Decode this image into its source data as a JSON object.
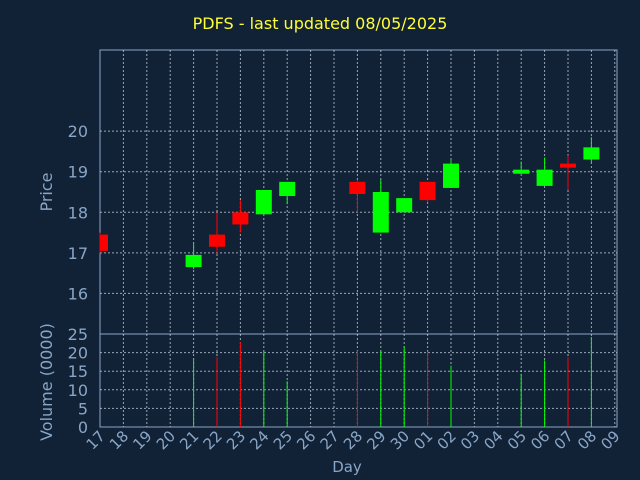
{
  "chart_data": {
    "type": "candlestick",
    "title": "PDFS - last updated 08/05/2025",
    "xlabel": "Day",
    "price_ylabel": "Price",
    "volume_ylabel": "Volume (0000)",
    "grid": true,
    "x_ticks": [
      "17",
      "18",
      "19",
      "20",
      "21",
      "22",
      "23",
      "24",
      "25",
      "26",
      "27",
      "28",
      "29",
      "30",
      "01",
      "02",
      "03",
      "04",
      "05",
      "06",
      "07",
      "08",
      "09"
    ],
    "price_ticks": [
      16,
      17,
      18,
      19,
      20
    ],
    "price_ylim": [
      15.0,
      22.0
    ],
    "volume_ticks": [
      0,
      5,
      10,
      15,
      20,
      25
    ],
    "volume_ylim": [
      0,
      25
    ],
    "colors": {
      "up": "#00ff00",
      "down": "#ff0000",
      "text": "#8aa6c6",
      "title": "#ffff33",
      "background": "#112236",
      "grid": "#c8d2e0"
    },
    "candles": [
      {
        "day": "17",
        "open": 17.45,
        "high": 17.5,
        "low": 17.0,
        "close": 17.05,
        "volume": 0
      },
      {
        "day": "21",
        "open": 16.65,
        "high": 17.25,
        "low": 16.6,
        "close": 16.95,
        "volume": 18.3
      },
      {
        "day": "22",
        "open": 17.45,
        "high": 18.0,
        "low": 17.0,
        "close": 17.15,
        "volume": 18.8
      },
      {
        "day": "23",
        "open": 18.0,
        "high": 18.3,
        "low": 17.5,
        "close": 17.7,
        "volume": 22.8
      },
      {
        "day": "24",
        "open": 17.95,
        "high": 18.55,
        "low": 17.95,
        "close": 18.55,
        "volume": 20.5
      },
      {
        "day": "25",
        "open": 18.4,
        "high": 18.75,
        "low": 18.2,
        "close": 18.75,
        "volume": 12.3
      },
      {
        "day": "28",
        "open": 18.75,
        "high": 18.8,
        "low": 18.0,
        "close": 18.45,
        "volume": 20.5
      },
      {
        "day": "29",
        "open": 17.5,
        "high": 18.8,
        "low": 17.5,
        "close": 18.5,
        "volume": 20.5
      },
      {
        "day": "30",
        "open": 18.0,
        "high": 18.35,
        "low": 18.0,
        "close": 18.35,
        "volume": 21.7
      },
      {
        "day": "01",
        "open": 18.75,
        "high": 18.75,
        "low": 18.25,
        "close": 18.3,
        "volume": 20.3
      },
      {
        "day": "02",
        "open": 18.6,
        "high": 19.3,
        "low": 18.6,
        "close": 19.2,
        "volume": 16.5
      },
      {
        "day": "05",
        "open": 18.95,
        "high": 19.25,
        "low": 18.95,
        "close": 19.05,
        "volume": 14.3
      },
      {
        "day": "06",
        "open": 18.65,
        "high": 19.35,
        "low": 18.65,
        "close": 19.05,
        "volume": 17.9
      },
      {
        "day": "07",
        "open": 19.2,
        "high": 19.4,
        "low": 18.55,
        "close": 19.1,
        "volume": 18.8
      },
      {
        "day": "08",
        "open": 19.3,
        "high": 19.85,
        "low": 19.2,
        "close": 19.6,
        "volume": 24.2
      }
    ]
  }
}
